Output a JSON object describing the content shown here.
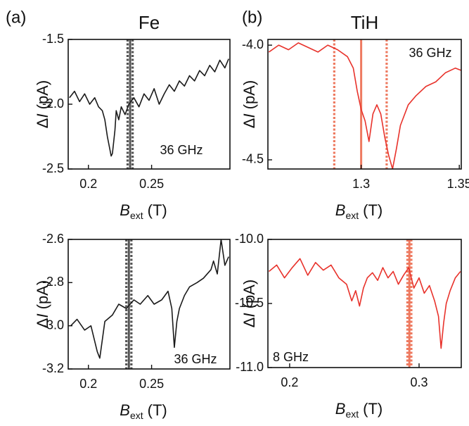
{
  "chart_data": [
    {
      "type": "line",
      "panel_label": "(a)",
      "title": "Fe",
      "annotation": "36 GHz",
      "color": "#1a1a1a",
      "vline_color": "#555555",
      "xlim": [
        0.184,
        0.312
      ],
      "xticks": [
        0.2,
        0.25
      ],
      "ylim": [
        -2.5,
        -1.5
      ],
      "yticks": [
        -2.5,
        {
          "value": -2,
          "label": "-2.0"
        },
        -1.5
      ],
      "xlabel": {
        "var": "B",
        "sub": "ext",
        "unit": "(T)"
      },
      "ylabel": {
        "prefix": "Δ",
        "var": "I",
        "unit": "(pA)"
      },
      "vlines": [
        {
          "x": 0.231,
          "style": "dotted"
        },
        {
          "x": 0.233,
          "style": "solid"
        },
        {
          "x": 0.235,
          "style": "dotted"
        }
      ],
      "x": [
        0.185,
        0.189,
        0.193,
        0.197,
        0.201,
        0.205,
        0.208,
        0.211,
        0.213,
        0.215,
        0.217,
        0.218,
        0.219,
        0.221,
        0.222,
        0.224,
        0.226,
        0.229,
        0.232,
        0.236,
        0.24,
        0.244,
        0.248,
        0.252,
        0.256,
        0.26,
        0.264,
        0.268,
        0.272,
        0.276,
        0.28,
        0.284,
        0.288,
        0.292,
        0.296,
        0.3,
        0.304,
        0.308,
        0.311
      ],
      "values": [
        -1.95,
        -1.9,
        -1.98,
        -1.92,
        -2.0,
        -1.95,
        -2.02,
        -2.05,
        -2.12,
        -2.25,
        -2.35,
        -2.4,
        -2.38,
        -2.2,
        -2.05,
        -2.12,
        -2.02,
        -2.08,
        -2.0,
        -1.95,
        -2.02,
        -1.92,
        -1.97,
        -1.88,
        -2.0,
        -1.92,
        -1.85,
        -1.9,
        -1.82,
        -1.86,
        -1.78,
        -1.82,
        -1.74,
        -1.78,
        -1.7,
        -1.75,
        -1.66,
        -1.72,
        -1.65
      ]
    },
    {
      "type": "line",
      "panel_label": "(b)",
      "title": "TiH",
      "annotation": "36 GHz",
      "color": "#e8322b",
      "vline_color": "#ee7a60",
      "xlim": [
        1.2525,
        1.351
      ],
      "xticks": [
        1.3,
        1.35
      ],
      "ylim": [
        -4.54,
        -3.975
      ],
      "yticks": [
        {
          "value": -4,
          "label": "-4.0"
        },
        -4.5
      ],
      "xlabel": {
        "var": "B",
        "sub": "ext",
        "unit": "(T)"
      },
      "ylabel": {
        "prefix": "Δ",
        "var": "I",
        "unit": "(pA)"
      },
      "vlines": [
        {
          "x": 1.2863,
          "style": "dotted"
        },
        {
          "x": 1.3,
          "style": "solid"
        },
        {
          "x": 1.313,
          "style": "dotted"
        }
      ],
      "x": [
        1.253,
        1.258,
        1.263,
        1.268,
        1.273,
        1.278,
        1.283,
        1.288,
        1.293,
        1.296,
        1.298,
        1.3,
        1.302,
        1.304,
        1.306,
        1.308,
        1.31,
        1.312,
        1.314,
        1.316,
        1.318,
        1.32,
        1.324,
        1.328,
        1.333,
        1.338,
        1.343,
        1.348,
        1.351
      ],
      "values": [
        -4.03,
        -4.0,
        -4.02,
        -3.99,
        -4.01,
        -4.03,
        -4.0,
        -4.02,
        -4.05,
        -4.1,
        -4.2,
        -4.28,
        -4.33,
        -4.42,
        -4.3,
        -4.26,
        -4.3,
        -4.4,
        -4.48,
        -4.54,
        -4.45,
        -4.35,
        -4.26,
        -4.22,
        -4.18,
        -4.16,
        -4.12,
        -4.1,
        -4.11
      ]
    },
    {
      "type": "line",
      "annotation": "36 GHz",
      "color": "#1a1a1a",
      "vline_color": "#555555",
      "xlim": [
        0.184,
        0.312
      ],
      "xticks": [
        0.2,
        0.25
      ],
      "ylim": [
        -3.2,
        -2.6
      ],
      "yticks": [
        -3.2,
        {
          "value": -3,
          "label": "-3.0"
        },
        -2.8,
        -2.6
      ],
      "xlabel": {
        "var": "B",
        "sub": "ext",
        "unit": "(T)"
      },
      "ylabel": {
        "prefix": "Δ",
        "var": "I",
        "unit": "(pA)"
      },
      "vlines": [
        {
          "x": 0.23,
          "style": "dotted"
        },
        {
          "x": 0.232,
          "style": "solid"
        },
        {
          "x": 0.234,
          "style": "dotted"
        }
      ],
      "x": [
        0.186,
        0.191,
        0.197,
        0.202,
        0.207,
        0.209,
        0.213,
        0.219,
        0.224,
        0.23,
        0.236,
        0.241,
        0.247,
        0.252,
        0.258,
        0.263,
        0.266,
        0.268,
        0.27,
        0.272,
        0.276,
        0.28,
        0.286,
        0.291,
        0.297,
        0.299,
        0.302,
        0.305,
        0.308,
        0.311
      ],
      "values": [
        -3.0,
        -2.97,
        -3.02,
        -3.0,
        -3.12,
        -3.15,
        -2.98,
        -2.95,
        -2.9,
        -2.92,
        -2.88,
        -2.9,
        -2.86,
        -2.9,
        -2.88,
        -2.84,
        -2.92,
        -3.1,
        -2.98,
        -2.92,
        -2.86,
        -2.82,
        -2.8,
        -2.78,
        -2.74,
        -2.7,
        -2.76,
        -2.6,
        -2.72,
        -2.68
      ]
    },
    {
      "type": "line",
      "annotation": "8 GHz",
      "color": "#e8322b",
      "vline_color": "#ee7a60",
      "xlim": [
        0.1832,
        0.3326
      ],
      "xticks": [
        0.2,
        0.3
      ],
      "ylim": [
        -11,
        -10
      ],
      "yticks": [
        {
          "value": -11,
          "label": "-11.0"
        },
        -10.5,
        {
          "value": -10,
          "label": "-10.0"
        }
      ],
      "xlabel": {
        "var": "B",
        "sub": "ext",
        "unit": "(T)"
      },
      "ylabel": {
        "prefix": "Δ",
        "var": "I",
        "unit": "(pA)"
      },
      "vlines": [
        {
          "x": 0.291,
          "style": "dotted"
        },
        {
          "x": 0.2925,
          "style": "solid"
        },
        {
          "x": 0.294,
          "style": "dotted"
        }
      ],
      "x": [
        0.184,
        0.19,
        0.196,
        0.202,
        0.208,
        0.214,
        0.22,
        0.226,
        0.232,
        0.238,
        0.244,
        0.248,
        0.251,
        0.254,
        0.257,
        0.26,
        0.264,
        0.268,
        0.272,
        0.276,
        0.28,
        0.284,
        0.288,
        0.292,
        0.296,
        0.3,
        0.304,
        0.308,
        0.312,
        0.315,
        0.317,
        0.319,
        0.321,
        0.324,
        0.328,
        0.332
      ],
      "values": [
        -10.25,
        -10.2,
        -10.3,
        -10.22,
        -10.15,
        -10.28,
        -10.18,
        -10.24,
        -10.2,
        -10.3,
        -10.35,
        -10.48,
        -10.4,
        -10.52,
        -10.38,
        -10.3,
        -10.26,
        -10.32,
        -10.22,
        -10.3,
        -10.25,
        -10.35,
        -10.28,
        -10.22,
        -10.38,
        -10.3,
        -10.42,
        -10.36,
        -10.48,
        -10.6,
        -10.85,
        -10.65,
        -10.5,
        -10.4,
        -10.3,
        -10.25
      ]
    }
  ]
}
